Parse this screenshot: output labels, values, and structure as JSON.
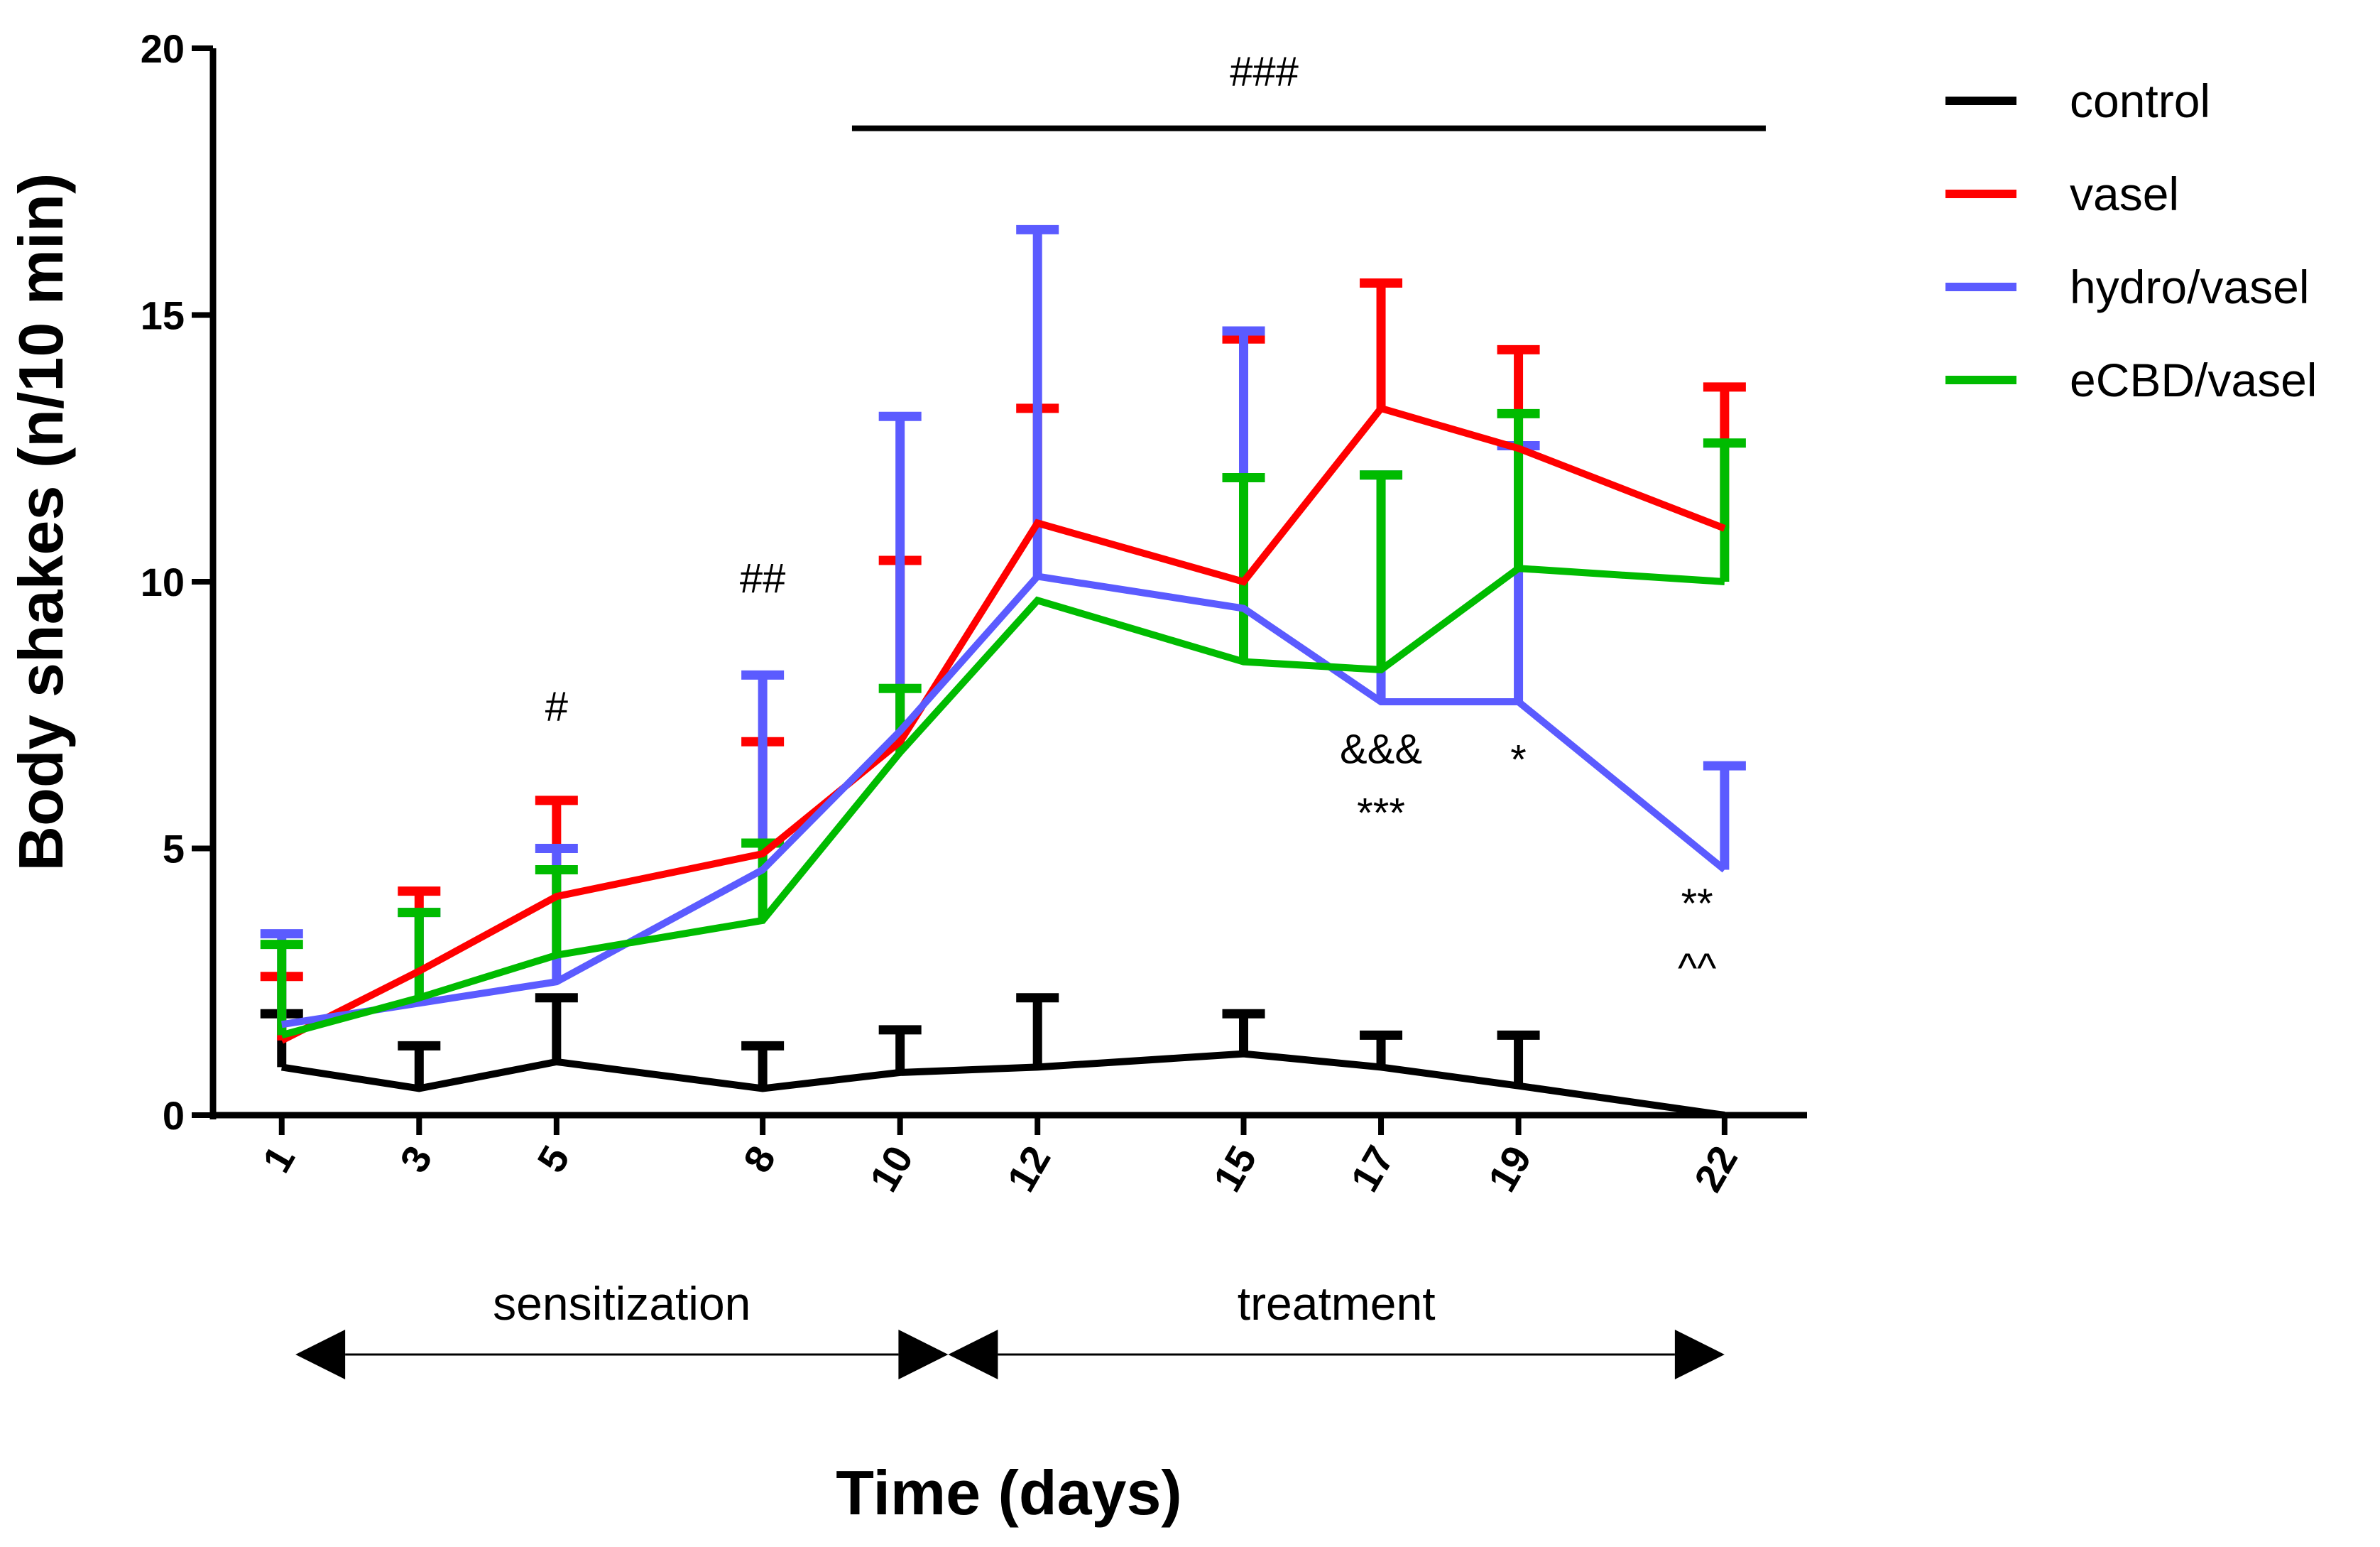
{
  "chart_data": {
    "type": "line",
    "title": "",
    "xlabel": "Time (days)",
    "ylabel": "Body shakes (n/10 min)",
    "ylim": [
      0,
      20
    ],
    "yticks": [
      0,
      5,
      10,
      15,
      20
    ],
    "x": [
      1,
      3,
      5,
      8,
      10,
      12,
      15,
      17,
      19,
      22
    ],
    "x_tick_labels": [
      "1",
      "3",
      "5",
      "8",
      "10",
      "12",
      "15",
      "17",
      "19",
      "22"
    ],
    "grid": false,
    "legend_position": "top-right",
    "series": [
      {
        "name": "control",
        "color": "#000000",
        "values": [
          0.9,
          0.5,
          1.0,
          0.5,
          0.8,
          0.9,
          1.15,
          0.9,
          0.55,
          0.0
        ],
        "error_upper": [
          1.9,
          1.3,
          2.2,
          1.3,
          1.6,
          2.2,
          1.9,
          1.5,
          1.5,
          0.0
        ]
      },
      {
        "name": "vasel",
        "color": "#ff0000",
        "values": [
          1.4,
          2.7,
          4.1,
          4.9,
          7.0,
          11.1,
          10.0,
          13.25,
          12.5,
          11.0
        ],
        "error_upper": [
          2.6,
          4.2,
          5.9,
          7.0,
          10.4,
          13.25,
          14.55,
          15.6,
          14.35,
          13.65
        ]
      },
      {
        "name": "hydro/vasel",
        "color": "#5b5bff",
        "values": [
          1.7,
          2.1,
          2.5,
          4.6,
          7.2,
          10.1,
          9.5,
          7.75,
          7.75,
          4.6
        ],
        "error_upper": [
          3.4,
          3.8,
          5.0,
          8.25,
          13.1,
          16.6,
          14.7,
          12.0,
          12.55,
          6.55
        ]
      },
      {
        "name": "eCBD/vasel",
        "color": "#00bb00",
        "values": [
          1.5,
          2.2,
          3.0,
          3.65,
          6.8,
          9.65,
          8.5,
          8.35,
          10.25,
          10.0
        ],
        "error_upper": [
          3.2,
          3.8,
          4.6,
          5.1,
          8.0,
          9.65,
          11.95,
          12.0,
          13.15,
          12.6
        ]
      }
    ],
    "annotations": [
      {
        "text": "#",
        "x": 5,
        "y": 7.4
      },
      {
        "text": "##",
        "x": 8,
        "y": 9.8
      },
      {
        "text": "###",
        "x": 15.3,
        "y": 19.3
      },
      {
        "text": "&&&",
        "x": 17,
        "y": 6.6
      },
      {
        "text": "***",
        "x": 17,
        "y": 5.4
      },
      {
        "text": "*",
        "x": 19,
        "y": 6.4
      },
      {
        "text": "**",
        "x": 21.6,
        "y": 3.7
      },
      {
        "text": "^^",
        "x": 21.6,
        "y": 2.5
      }
    ],
    "significance_bar": {
      "x_start": 9.3,
      "x_end": 22.6,
      "y": 18.5
    },
    "phases": [
      {
        "label": "sensitization",
        "x_start": 1.2,
        "x_end": 10.7
      },
      {
        "label": "treatment",
        "x_start": 10.7,
        "x_end": 22.0
      }
    ]
  }
}
